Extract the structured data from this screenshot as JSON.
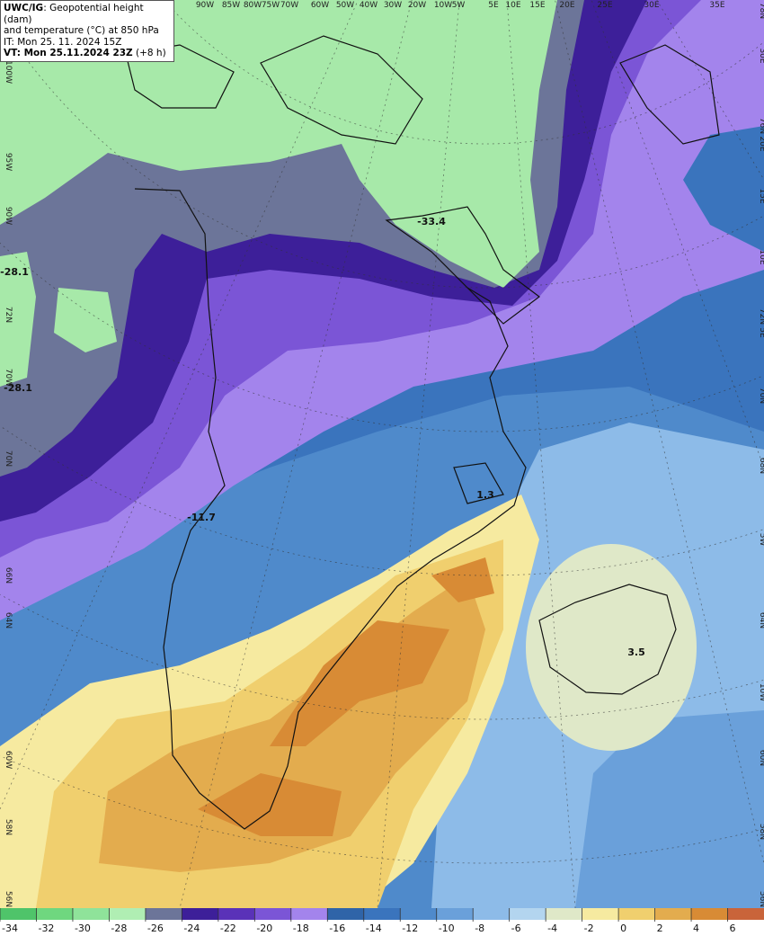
{
  "header": {
    "title_bold": "UWC/IG",
    "title_rest": ": Geopotential height (dam)",
    "line2": "and temperature (°C) at 850 hPa",
    "line3": "IT: Mon 25. 11. 2024 15Z",
    "vt_bold": "VT: Mon 25.11.2024 23Z",
    "vt_rest": " (+8 h)"
  },
  "top_labels": [
    "90W",
    "85W",
    "80W",
    "75W",
    "70W",
    "60W",
    "50W",
    "40W",
    "30W",
    "20W",
    "10W",
    "5W",
    "5E",
    "10E",
    "15E",
    "20E",
    "25E",
    "30E",
    "35E"
  ],
  "right_labels": [
    "78N",
    "30E",
    "76N",
    "20E",
    "15E",
    "10E",
    "72N",
    "5E",
    "70N",
    "68N",
    "5W",
    "64N",
    "10W",
    "60N",
    "58N",
    "56N"
  ],
  "left_labels": [
    "100W",
    "95W",
    "90W",
    "72N",
    "70W",
    "70N",
    "66N",
    "64N",
    "60W",
    "58N",
    "56N"
  ],
  "point_labels": [
    "-33.4",
    "-28.1",
    "-28.1",
    "-11.7",
    "1.3",
    "3.5"
  ],
  "colorbar": {
    "labels": [
      -34,
      -32,
      -30,
      -28,
      -26,
      -24,
      -22,
      -20,
      -18,
      -16,
      -14,
      -12,
      -10,
      -8,
      -6,
      -4,
      -2,
      0,
      2,
      4,
      6
    ],
    "colors": [
      "#4fc46a",
      "#6fd77f",
      "#8fe39a",
      "#b0eeb3",
      "#6c7599",
      "#3d1f99",
      "#5a32b8",
      "#7b55d6",
      "#a384ec",
      "#2f64a8",
      "#3a74bd",
      "#4f8acb",
      "#6aa0da",
      "#8dbbe8",
      "#b3d5ef",
      "#dfe8c8",
      "#f6eaa0",
      "#f0cf6e",
      "#e3ac4e",
      "#d88b35",
      "#c9643a"
    ]
  }
}
